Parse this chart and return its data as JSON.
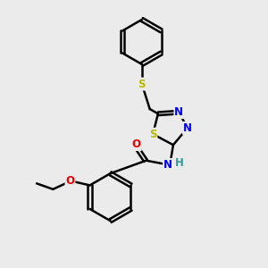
{
  "background_color": "#ebebeb",
  "bond_color": "#000000",
  "bond_width": 1.8,
  "atom_colors": {
    "S": "#b8b800",
    "N": "#0000ee",
    "O": "#ee0000",
    "H": "#339999",
    "C": "#000000"
  },
  "font_size": 8.5,
  "figsize": [
    3.0,
    3.0
  ],
  "dpi": 100
}
